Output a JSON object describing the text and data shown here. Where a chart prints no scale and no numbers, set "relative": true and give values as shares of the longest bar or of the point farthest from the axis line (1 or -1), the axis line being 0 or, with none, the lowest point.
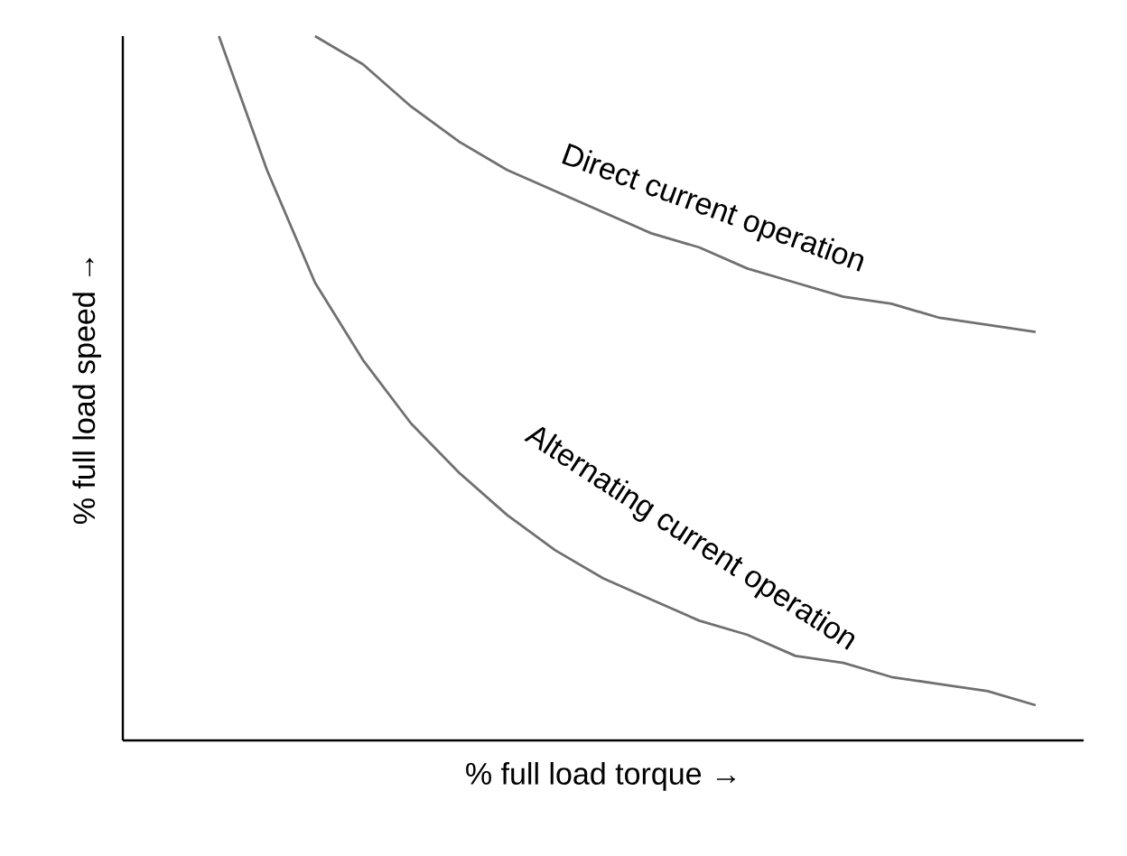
{
  "chart_data": {
    "type": "line",
    "relative": true,
    "xlabel": "% full load torque →",
    "ylabel": "% full load speed →",
    "categories": [
      null,
      null,
      null,
      null,
      null,
      null,
      null,
      null,
      null,
      null,
      null,
      null,
      null,
      null,
      null,
      null,
      null,
      null,
      null,
      null,
      null
    ],
    "series": [
      {
        "name": "Direct current operation",
        "color": "#707070",
        "values": [
          null,
          null,
          null,
          null,
          1.0,
          0.96,
          0.9,
          0.85,
          0.81,
          0.78,
          0.75,
          0.72,
          0.7,
          0.67,
          0.65,
          0.63,
          0.62,
          0.6,
          0.59,
          0.58,
          null
        ]
      },
      {
        "name": "Alternating current operation",
        "color": "#707070",
        "values": [
          null,
          null,
          1.0,
          0.81,
          0.65,
          0.54,
          0.45,
          0.38,
          0.32,
          0.27,
          0.23,
          0.2,
          0.17,
          0.15,
          0.12,
          0.11,
          0.09,
          0.08,
          0.07,
          0.05,
          null
        ]
      }
    ],
    "marker": "none",
    "line_style": "solid"
  }
}
